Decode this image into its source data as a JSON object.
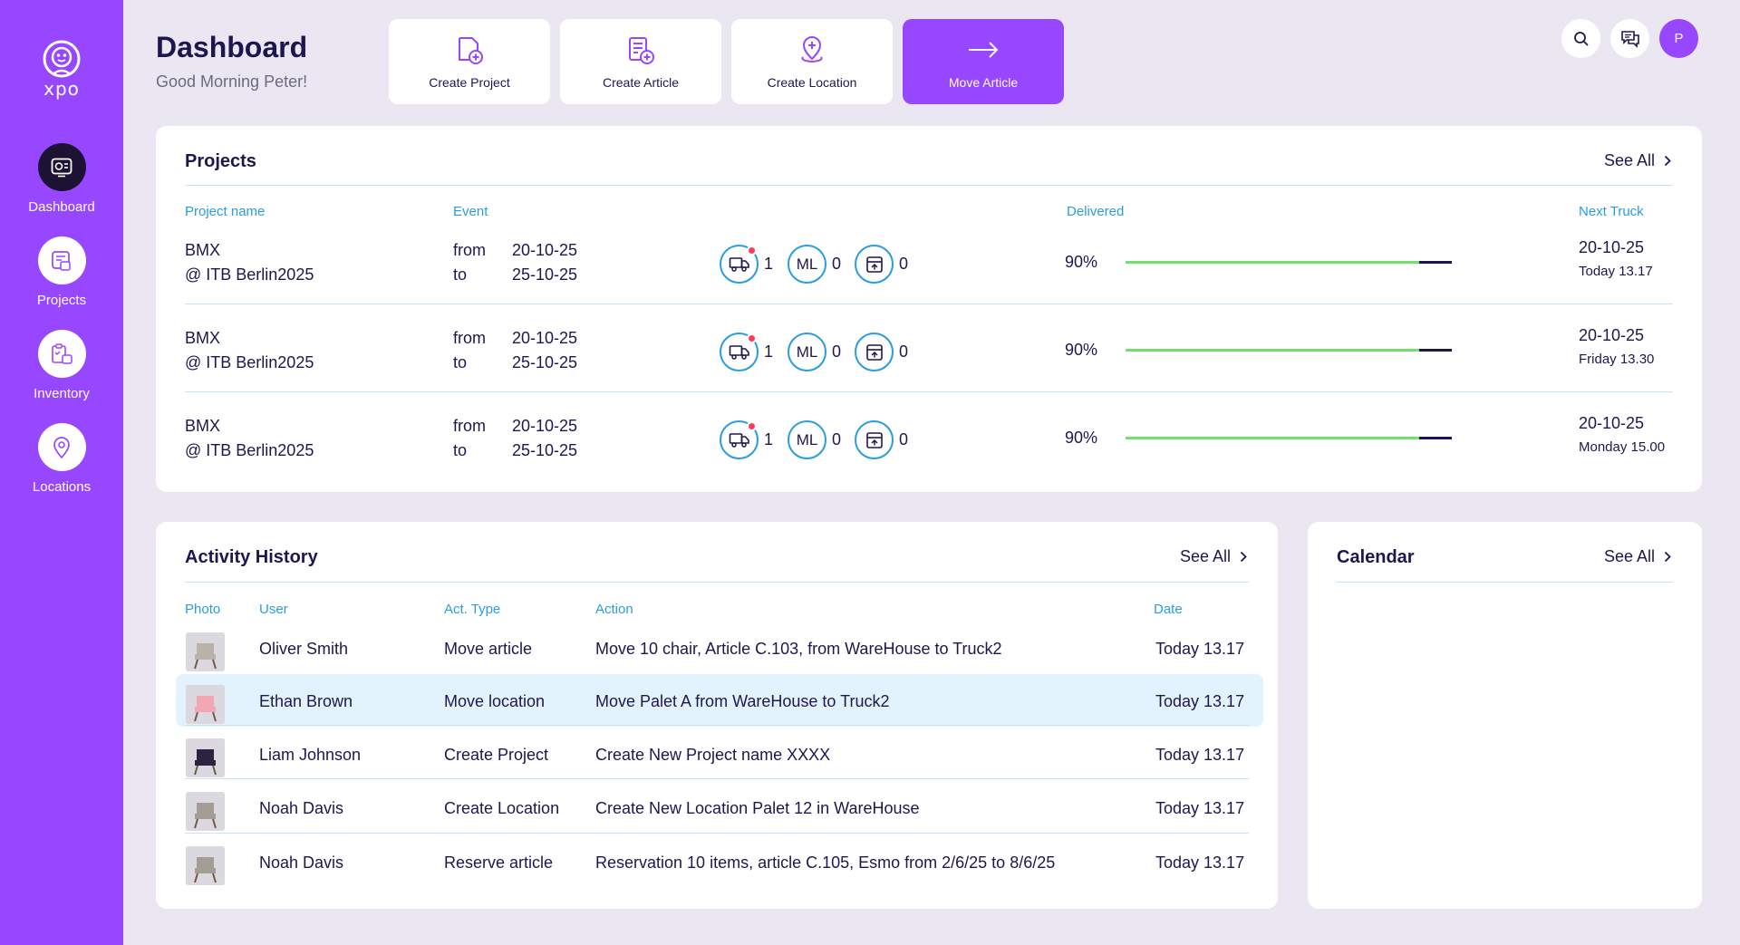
{
  "sidebar": {
    "logo_text": "xpo",
    "items": [
      {
        "label": "Dashboard",
        "icon": "dashboard-icon",
        "active": true
      },
      {
        "label": "Projects",
        "icon": "projects-icon",
        "active": false
      },
      {
        "label": "Inventory",
        "icon": "inventory-icon",
        "active": false
      },
      {
        "label": "Locations",
        "icon": "location-pin-icon",
        "active": false
      }
    ]
  },
  "header": {
    "title": "Dashboard",
    "greeting": "Good Morning Peter!",
    "avatar_initial": "P"
  },
  "quick_actions": [
    {
      "label": "Create Project",
      "icon": "create-project-icon"
    },
    {
      "label": "Create Article",
      "icon": "create-article-icon"
    },
    {
      "label": "Create Location",
      "icon": "create-location-icon"
    },
    {
      "label": "Move Article",
      "icon": "arrow-right-icon"
    }
  ],
  "projects": {
    "title": "Projects",
    "see_all": "See All",
    "columns": {
      "name": "Project name",
      "event": "Event",
      "delivered": "Delivered",
      "next_truck": "Next Truck"
    },
    "rows": [
      {
        "name": "BMX",
        "location": "@ ITB Berlin2025",
        "from_label": "from",
        "to_label": "to",
        "from_date": "20-10-25",
        "to_date": "25-10-25",
        "truck_count": "1",
        "ml_label": "ML",
        "ml_count": "0",
        "box_count": "0",
        "delivered_pct": "90%",
        "delivered_value": 0.9,
        "truck_date": "20-10-25",
        "truck_day": "Today 13.17"
      },
      {
        "name": "BMX",
        "location": "@ ITB Berlin2025",
        "from_label": "from",
        "to_label": "to",
        "from_date": "20-10-25",
        "to_date": "25-10-25",
        "truck_count": "1",
        "ml_label": "ML",
        "ml_count": "0",
        "box_count": "0",
        "delivered_pct": "90%",
        "delivered_value": 0.9,
        "truck_date": "20-10-25",
        "truck_day": "Friday 13.30"
      },
      {
        "name": "BMX",
        "location": "@ ITB Berlin2025",
        "from_label": "from",
        "to_label": "to",
        "from_date": "20-10-25",
        "to_date": "25-10-25",
        "truck_count": "1",
        "ml_label": "ML",
        "ml_count": "0",
        "box_count": "0",
        "delivered_pct": "90%",
        "delivered_value": 0.9,
        "truck_date": "20-10-25",
        "truck_day": "Monday 15.00"
      }
    ]
  },
  "activity": {
    "title": "Activity History",
    "see_all": "See All",
    "columns": {
      "photo": "Photo",
      "user": "User",
      "type": "Act. Type",
      "action": "Action",
      "date": "Date"
    },
    "rows": [
      {
        "user": "Oliver Smith",
        "type": "Move article",
        "action": "Move 10 chair, Article C.103, from WareHouse to Truck2",
        "date": "Today 13.17",
        "photo_color": "#b9b2a8"
      },
      {
        "user": "Ethan Brown",
        "type": "Move location",
        "action": "Move Palet A from WareHouse to Truck2",
        "date": "Today 13.17",
        "photo_color": "#f2a7b4"
      },
      {
        "user": "Liam Johnson",
        "type": "Create Project",
        "action": "Create New Project name XXXX",
        "date": "Today 13.17",
        "photo_color": "#2b2440"
      },
      {
        "user": "Noah Davis",
        "type": "Create Location",
        "action": "Create New Location Palet 12 in WareHouse",
        "date": "Today 13.17",
        "photo_color": "#a39d95"
      },
      {
        "user": "Noah Davis",
        "type": "Reserve article",
        "action": "Reservation 10 items, article C.105, Esmo from 2/6/25 to 8/6/25",
        "date": "Today 13.17",
        "photo_color": "#a39d95"
      }
    ]
  },
  "calendar": {
    "title": "Calendar",
    "see_all": "See All"
  },
  "colors": {
    "accent": "#9747ff",
    "sidebar_active": "#1c1334",
    "link_blue": "#2a9de0",
    "progress_green": "#72e06a",
    "alert_red": "#ff3b5c",
    "row_highlight": "#e3f3fd"
  }
}
